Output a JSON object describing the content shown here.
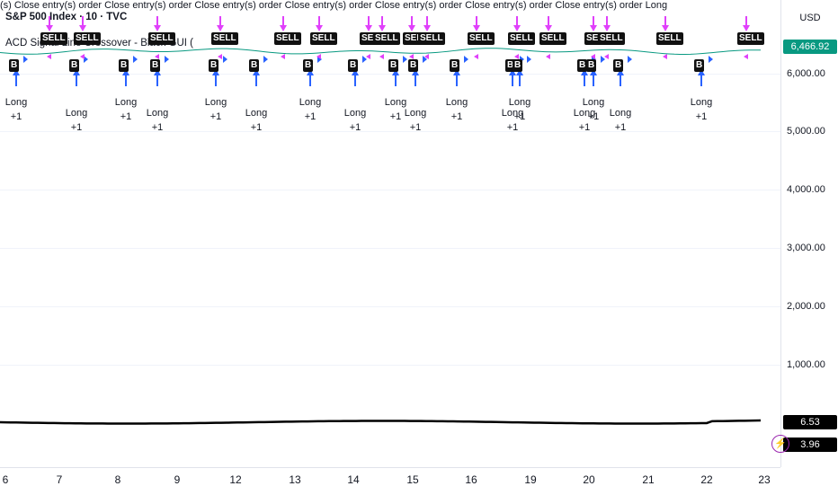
{
  "header": {
    "symbol_title": "S&P 500 Index · 10 · TVC",
    "indicator_title": "ACD Signal Line Crossover - Black GUI (",
    "order_strip": "(s) Close entry(s) order  Close entry(s) order  Close entry(s) order  Close entry(s) order  Close entry(s) order  Close entry(s) order  Close entry(s) order Long"
  },
  "price_axis": {
    "currency": "USD",
    "labels": [
      "6,000.00",
      "5,000.00",
      "4,000.00",
      "3,000.00",
      "2,000.00",
      "1,000.00"
    ],
    "last_price": "6,466.92",
    "last_price_color": "#089981",
    "macd_value": "6.53",
    "signal_value": "3.96"
  },
  "time_axis": {
    "labels": [
      "6",
      "7",
      "8",
      "9",
      "12",
      "13",
      "14",
      "15",
      "16",
      "19",
      "20",
      "21",
      "22",
      "23"
    ]
  },
  "signals": {
    "buy_label": "B",
    "sell_label": "SELL",
    "long_label": "Long",
    "plus_label": "+1",
    "buy_positions": [
      18,
      85,
      140,
      175,
      240,
      285,
      345,
      395,
      440,
      462,
      508,
      570,
      578,
      650,
      660,
      690,
      780
    ],
    "sell_positions": [
      55,
      92,
      175,
      245,
      315,
      355,
      410,
      425,
      458,
      475,
      530,
      575,
      610,
      660,
      675,
      740,
      830
    ]
  },
  "colors": {
    "buy_arrow": "#2962ff",
    "sell_arrow": "#e040fb",
    "price_line": "#089981",
    "macd_line": "#000000"
  },
  "icons": {
    "alert": "lightning-icon"
  }
}
